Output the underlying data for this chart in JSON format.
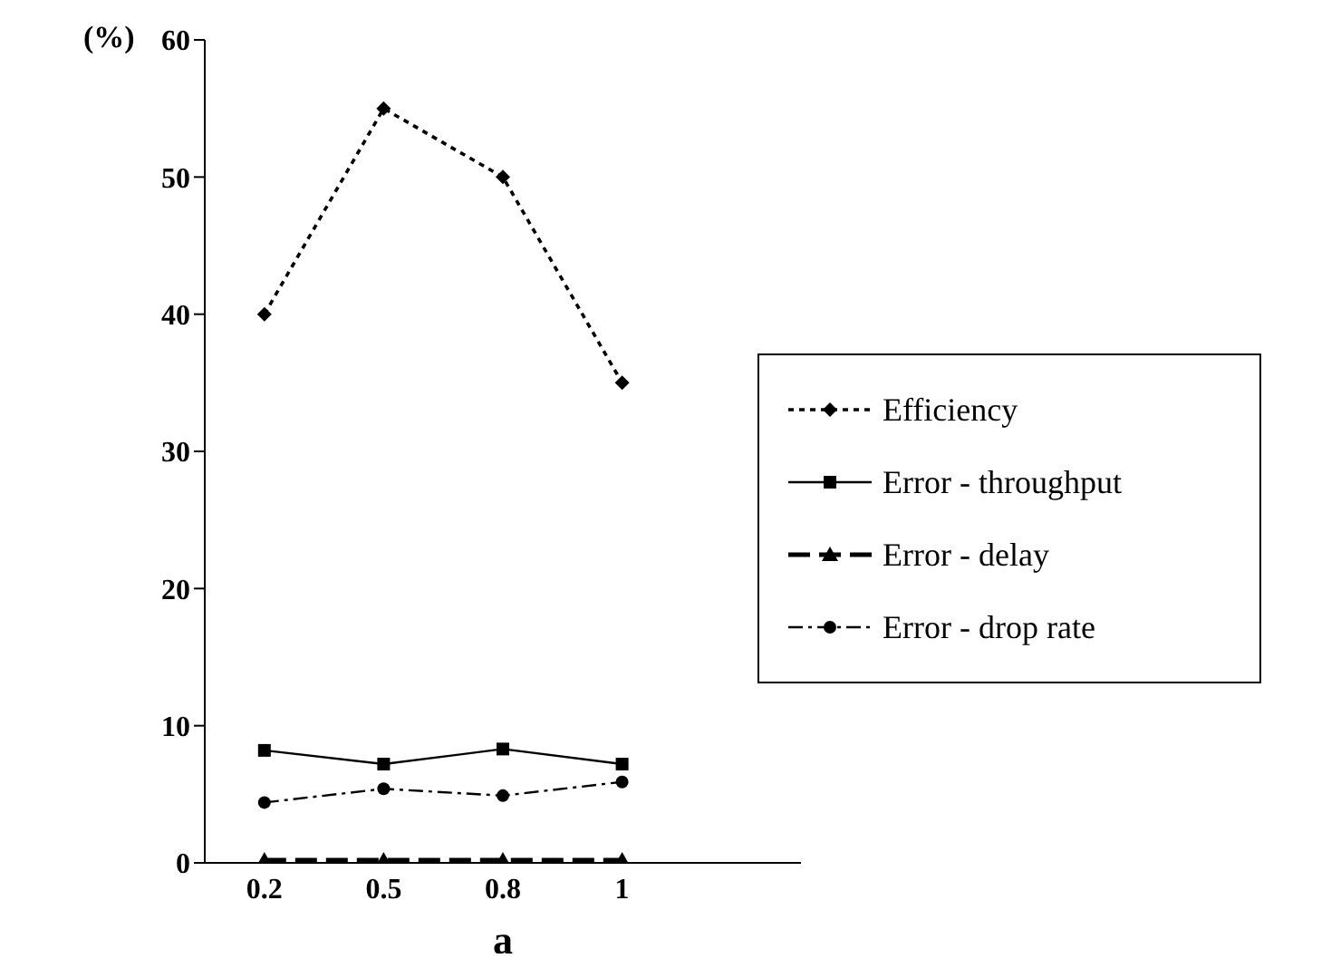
{
  "chart_data": {
    "type": "line",
    "xlabel": "a",
    "ylabel": "(%)",
    "categories": [
      "0.2",
      "0.5",
      "0.8",
      "1",
      null
    ],
    "ylim": [
      0,
      60
    ],
    "yticks": [
      0,
      10,
      20,
      30,
      40,
      50,
      60
    ],
    "legend": "right",
    "series": [
      {
        "name": "Efficiency",
        "color": "#000000",
        "values": [
          40,
          55,
          50,
          35,
          null
        ],
        "marker": "diamond",
        "line_style": "dotted"
      },
      {
        "name": "Error - throughput",
        "color": "#000000",
        "values": [
          8.2,
          7.2,
          8.3,
          7.2,
          null
        ],
        "marker": "square",
        "line_style": "solid"
      },
      {
        "name": "Error - delay",
        "color": "#000000",
        "values": [
          0.2,
          0.2,
          0.2,
          0.2,
          null
        ],
        "marker": "triangle",
        "line_style": "dashed"
      },
      {
        "name": "Error - drop rate",
        "color": "#000000",
        "values": [
          4.4,
          5.4,
          4.9,
          5.9,
          null
        ],
        "marker": "circle",
        "line_style": "dashdot"
      }
    ]
  }
}
